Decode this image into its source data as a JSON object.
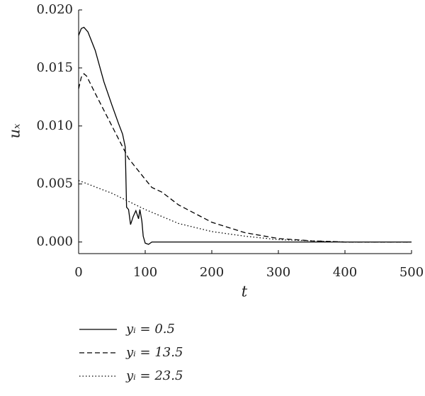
{
  "chart_data": {
    "type": "line",
    "x_label": "t",
    "y_label": "uₓ",
    "xlim": [
      0,
      500
    ],
    "ylim": [
      -0.001,
      0.02
    ],
    "xticks": [
      0,
      100,
      200,
      300,
      400,
      500
    ],
    "yticks": [
      {
        "value": 0,
        "label": "0.000"
      },
      {
        "value": 0.005,
        "label": "0.005"
      },
      {
        "value": 0.01,
        "label": "0.010"
      },
      {
        "value": 0.015,
        "label": "0.015"
      },
      {
        "value": 0.02,
        "label": "0.020"
      }
    ],
    "series": [
      {
        "name": "yᵢ = 0.5",
        "color": "#000000",
        "dash": "solid",
        "x": [
          0,
          4,
          8,
          14,
          25,
          38,
          50,
          60,
          66,
          70,
          72,
          75,
          78,
          82,
          86,
          90,
          92,
          95,
          97,
          100,
          105,
          110,
          200,
          300,
          400,
          500
        ],
        "values": [
          0.0178,
          0.0184,
          0.0185,
          0.0181,
          0.0165,
          0.0138,
          0.0118,
          0.0102,
          0.0093,
          0.0082,
          0.003,
          0.0028,
          0.0015,
          0.0022,
          0.0027,
          0.002,
          0.0028,
          0.0018,
          0.0005,
          -0.0001,
          -0.0002,
          0,
          0,
          0,
          0,
          0
        ]
      },
      {
        "name": "yᵢ = 13.5",
        "color": "#000000",
        "dash": "dashed",
        "x": [
          0,
          4,
          8,
          12,
          25,
          50,
          75,
          100,
          110,
          125,
          150,
          200,
          250,
          300,
          350,
          400,
          500
        ],
        "values": [
          0.0132,
          0.0142,
          0.0145,
          0.0143,
          0.0128,
          0.01,
          0.0072,
          0.0054,
          0.0047,
          0.0043,
          0.0032,
          0.0017,
          0.0008,
          0.0003,
          0.0001,
          0,
          0
        ]
      },
      {
        "name": "yᵢ = 23.5",
        "color": "#000000",
        "dash": "dotted",
        "x": [
          0,
          50,
          100,
          150,
          200,
          250,
          300,
          350,
          400,
          500
        ],
        "values": [
          0.0053,
          0.0042,
          0.0028,
          0.0016,
          0.0009,
          0.0005,
          0.0002,
          0.0001,
          0,
          0
        ]
      }
    ]
  }
}
